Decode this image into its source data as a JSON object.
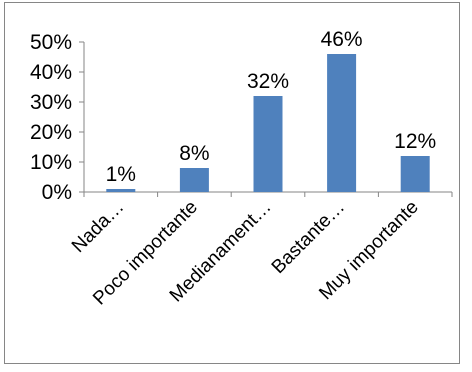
{
  "chart_data": {
    "type": "bar",
    "categories": [
      "Nada…",
      "Poco importante",
      "Medianament…",
      "Bastante…",
      "Muy importante"
    ],
    "values": [
      1,
      8,
      32,
      46,
      12
    ],
    "data_labels": [
      "1%",
      "8%",
      "32%",
      "46%",
      "12%"
    ],
    "ylim": [
      0,
      50
    ],
    "yticks": [
      "0%",
      "10%",
      "20%",
      "30%",
      "40%",
      "50%"
    ],
    "ytick_values": [
      0,
      10,
      20,
      30,
      40,
      50
    ],
    "grid": false,
    "legend": "none",
    "bar_color": "#4f81bd"
  }
}
